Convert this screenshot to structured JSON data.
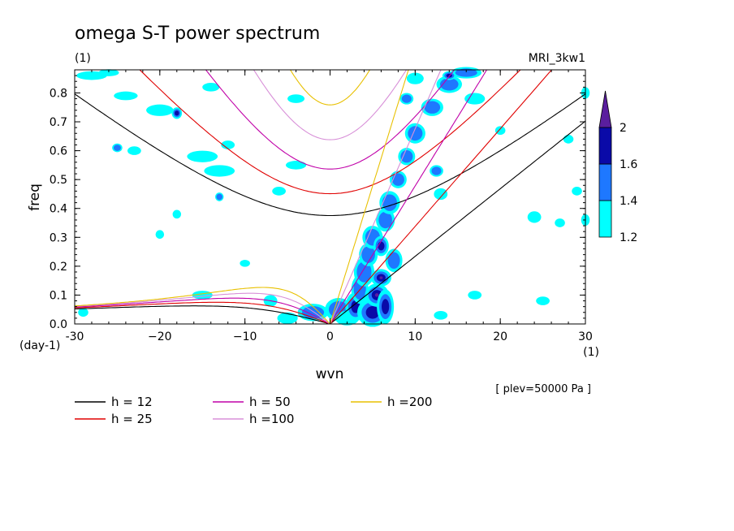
{
  "chart_data": {
    "type": "contour",
    "title": "omega S-T power spectrum",
    "subtitle": "(1)",
    "model": "MRI_3kw1",
    "xlabel": "wvn",
    "ylabel": "freq",
    "x_unit": "(1)",
    "y_unit": "(day-1)",
    "xlim": [
      -30,
      30
    ],
    "ylim": [
      0,
      0.88
    ],
    "xticks": [
      {
        "v": -30,
        "label": "-30"
      },
      {
        "v": -20,
        "label": "−20"
      },
      {
        "v": -10,
        "label": "−10"
      },
      {
        "v": 0,
        "label": "0"
      },
      {
        "v": 10,
        "label": "10"
      },
      {
        "v": 20,
        "label": "20"
      },
      {
        "v": 30,
        "label": "30"
      }
    ],
    "yticks": [
      {
        "v": 0.0,
        "label": "0.0"
      },
      {
        "v": 0.1,
        "label": "0.1"
      },
      {
        "v": 0.2,
        "label": "0.2"
      },
      {
        "v": 0.3,
        "label": "0.3"
      },
      {
        "v": 0.4,
        "label": "0.4"
      },
      {
        "v": 0.5,
        "label": "0.5"
      },
      {
        "v": 0.6,
        "label": "0.6"
      },
      {
        "v": 0.7,
        "label": "0.7"
      },
      {
        "v": 0.8,
        "label": "0.8"
      }
    ],
    "level_note": "[ plev=50000 Pa ]",
    "colorbar": {
      "levels": [
        1.2,
        1.4,
        1.6,
        2
      ],
      "labels": [
        "1.2",
        "1.4",
        "1.6",
        "2"
      ],
      "colors": [
        "#00ffff",
        "#1e78ff",
        "#0a0aa8",
        "#5a1e9e"
      ]
    },
    "dispersion_curves": [
      {
        "name": "h = 12",
        "h": 12,
        "color": "#000000"
      },
      {
        "name": "h = 25",
        "h": 25,
        "color": "#e00000"
      },
      {
        "name": "h = 50",
        "h": 50,
        "color": "#c000a8"
      },
      {
        "name": "h =100",
        "h": 100,
        "color": "#d890d8"
      },
      {
        "name": "h =200",
        "h": 200,
        "color": "#e8c000"
      }
    ],
    "power_blobs": [
      {
        "x": 1,
        "y": 0.05,
        "rx": 1.6,
        "ry": 0.04,
        "lvl": 1
      },
      {
        "x": 2,
        "y": 0.02,
        "rx": 1.4,
        "ry": 0.025,
        "lvl": 0
      },
      {
        "x": 3,
        "y": 0.06,
        "rx": 1.2,
        "ry": 0.05,
        "lvl": 2
      },
      {
        "x": 3.5,
        "y": 0.12,
        "rx": 1.0,
        "ry": 0.05,
        "lvl": 1
      },
      {
        "x": 4,
        "y": 0.18,
        "rx": 1.2,
        "ry": 0.05,
        "lvl": 1
      },
      {
        "x": 4.5,
        "y": 0.24,
        "rx": 1.1,
        "ry": 0.04,
        "lvl": 1
      },
      {
        "x": 5,
        "y": 0.04,
        "rx": 1.8,
        "ry": 0.05,
        "lvl": 2
      },
      {
        "x": 5.5,
        "y": 0.1,
        "rx": 1.4,
        "ry": 0.04,
        "lvl": 3
      },
      {
        "x": 6,
        "y": 0.16,
        "rx": 1.2,
        "ry": 0.03,
        "lvl": 3
      },
      {
        "x": 6.5,
        "y": 0.06,
        "rx": 1.0,
        "ry": 0.06,
        "lvl": 2
      },
      {
        "x": 5,
        "y": 0.3,
        "rx": 1.2,
        "ry": 0.04,
        "lvl": 1
      },
      {
        "x": 6,
        "y": 0.27,
        "rx": 0.9,
        "ry": 0.035,
        "lvl": 2
      },
      {
        "x": 6.5,
        "y": 0.36,
        "rx": 1.1,
        "ry": 0.04,
        "lvl": 1
      },
      {
        "x": 7,
        "y": 0.42,
        "rx": 1.2,
        "ry": 0.04,
        "lvl": 1
      },
      {
        "x": 7.5,
        "y": 0.22,
        "rx": 1.0,
        "ry": 0.04,
        "lvl": 1
      },
      {
        "x": 8,
        "y": 0.5,
        "rx": 1.0,
        "ry": 0.03,
        "lvl": 1
      },
      {
        "x": 9,
        "y": 0.58,
        "rx": 1.0,
        "ry": 0.03,
        "lvl": 1
      },
      {
        "x": 10,
        "y": 0.66,
        "rx": 1.2,
        "ry": 0.035,
        "lvl": 1
      },
      {
        "x": 12,
        "y": 0.75,
        "rx": 1.3,
        "ry": 0.03,
        "lvl": 1
      },
      {
        "x": 14,
        "y": 0.83,
        "rx": 1.5,
        "ry": 0.03,
        "lvl": 1
      },
      {
        "x": 16,
        "y": 0.87,
        "rx": 1.8,
        "ry": 0.02,
        "lvl": 1
      },
      {
        "x": 14,
        "y": 0.86,
        "rx": 0.8,
        "ry": 0.015,
        "lvl": 2
      },
      {
        "x": 12.5,
        "y": 0.53,
        "rx": 0.8,
        "ry": 0.02,
        "lvl": 1
      },
      {
        "x": 13,
        "y": 0.45,
        "rx": 0.8,
        "ry": 0.02,
        "lvl": 0
      },
      {
        "x": 10,
        "y": 0.85,
        "rx": 1.0,
        "ry": 0.02,
        "lvl": 0
      },
      {
        "x": 9,
        "y": 0.78,
        "rx": 0.8,
        "ry": 0.02,
        "lvl": 1
      },
      {
        "x": -2,
        "y": 0.04,
        "rx": 1.8,
        "ry": 0.03,
        "lvl": 1
      },
      {
        "x": -5,
        "y": 0.02,
        "rx": 1.2,
        "ry": 0.02,
        "lvl": 0
      },
      {
        "x": -7,
        "y": 0.08,
        "rx": 0.8,
        "ry": 0.02,
        "lvl": 0
      },
      {
        "x": -20,
        "y": 0.74,
        "rx": 1.6,
        "ry": 0.02,
        "lvl": 0
      },
      {
        "x": -18,
        "y": 0.73,
        "rx": 0.6,
        "ry": 0.02,
        "lvl": 2
      },
      {
        "x": -15,
        "y": 0.58,
        "rx": 1.8,
        "ry": 0.02,
        "lvl": 0
      },
      {
        "x": -13,
        "y": 0.53,
        "rx": 1.8,
        "ry": 0.02,
        "lvl": 0
      },
      {
        "x": -12,
        "y": 0.62,
        "rx": 0.8,
        "ry": 0.015,
        "lvl": 0
      },
      {
        "x": -4,
        "y": 0.55,
        "rx": 1.2,
        "ry": 0.015,
        "lvl": 0
      },
      {
        "x": -6,
        "y": 0.46,
        "rx": 0.8,
        "ry": 0.015,
        "lvl": 0
      },
      {
        "x": -24,
        "y": 0.79,
        "rx": 1.4,
        "ry": 0.015,
        "lvl": 0
      },
      {
        "x": -28,
        "y": 0.86,
        "rx": 1.8,
        "ry": 0.015,
        "lvl": 0
      },
      {
        "x": -26,
        "y": 0.87,
        "rx": 1.2,
        "ry": 0.012,
        "lvl": 0
      },
      {
        "x": -14,
        "y": 0.82,
        "rx": 1.0,
        "ry": 0.015,
        "lvl": 0
      },
      {
        "x": -25,
        "y": 0.61,
        "rx": 0.6,
        "ry": 0.015,
        "lvl": 1
      },
      {
        "x": -23,
        "y": 0.6,
        "rx": 0.8,
        "ry": 0.015,
        "lvl": 0
      },
      {
        "x": -15,
        "y": 0.1,
        "rx": 1.2,
        "ry": 0.015,
        "lvl": 0
      },
      {
        "x": -4,
        "y": 0.78,
        "rx": 1.0,
        "ry": 0.015,
        "lvl": 0
      },
      {
        "x": 24,
        "y": 0.37,
        "rx": 0.8,
        "ry": 0.02,
        "lvl": 0
      },
      {
        "x": 25,
        "y": 0.08,
        "rx": 0.8,
        "ry": 0.015,
        "lvl": 0
      },
      {
        "x": 27,
        "y": 0.35,
        "rx": 0.6,
        "ry": 0.015,
        "lvl": 0
      },
      {
        "x": 29,
        "y": 0.46,
        "rx": 0.6,
        "ry": 0.015,
        "lvl": 0
      },
      {
        "x": 28,
        "y": 0.64,
        "rx": 0.6,
        "ry": 0.015,
        "lvl": 0
      },
      {
        "x": 30,
        "y": 0.36,
        "rx": 0.5,
        "ry": 0.02,
        "lvl": 0
      },
      {
        "x": 30,
        "y": 0.8,
        "rx": 0.5,
        "ry": 0.02,
        "lvl": 0
      },
      {
        "x": -29,
        "y": 0.04,
        "rx": 0.6,
        "ry": 0.015,
        "lvl": 0
      },
      {
        "x": -20,
        "y": 0.31,
        "rx": 0.5,
        "ry": 0.015,
        "lvl": 0
      },
      {
        "x": -18,
        "y": 0.38,
        "rx": 0.5,
        "ry": 0.015,
        "lvl": 0
      },
      {
        "x": -13,
        "y": 0.44,
        "rx": 0.5,
        "ry": 0.015,
        "lvl": 1
      },
      {
        "x": 17,
        "y": 0.78,
        "rx": 1.2,
        "ry": 0.02,
        "lvl": 0
      },
      {
        "x": 20,
        "y": 0.67,
        "rx": 0.6,
        "ry": 0.015,
        "lvl": 0
      },
      {
        "x": 17,
        "y": 0.1,
        "rx": 0.8,
        "ry": 0.015,
        "lvl": 0
      },
      {
        "x": 13,
        "y": 0.03,
        "rx": 0.8,
        "ry": 0.015,
        "lvl": 0
      },
      {
        "x": -10,
        "y": 0.21,
        "rx": 0.6,
        "ry": 0.012,
        "lvl": 0
      }
    ]
  }
}
